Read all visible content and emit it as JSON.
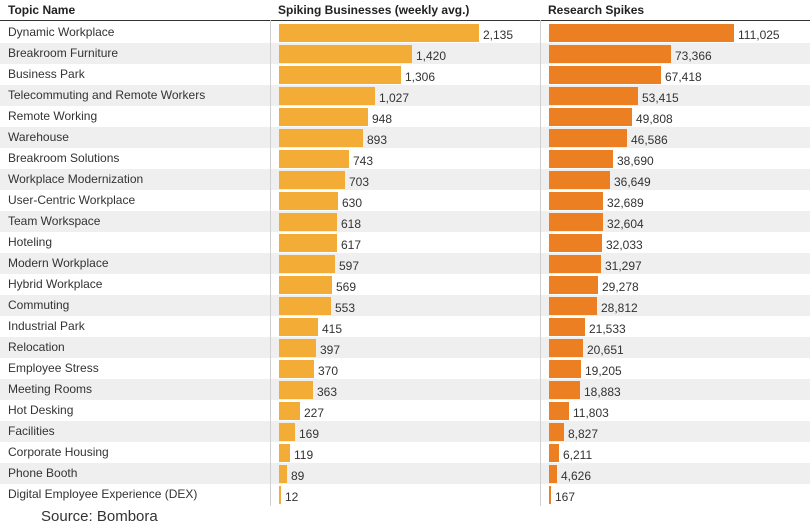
{
  "chart_data": {
    "type": "table",
    "columns": [
      "Topic Name",
      "Spiking Businesses (weekly avg.)",
      "Research Spikes"
    ],
    "rows": [
      {
        "topic": "Dynamic Workplace",
        "spiking": 2135,
        "spiking_label": "2,135",
        "research": 111025,
        "research_label": "111,025"
      },
      {
        "topic": "Breakroom Furniture",
        "spiking": 1420,
        "spiking_label": "1,420",
        "research": 73366,
        "research_label": "73,366"
      },
      {
        "topic": "Business Park",
        "spiking": 1306,
        "spiking_label": "1,306",
        "research": 67418,
        "research_label": "67,418"
      },
      {
        "topic": "Telecommuting and Remote Workers",
        "spiking": 1027,
        "spiking_label": "1,027",
        "research": 53415,
        "research_label": "53,415"
      },
      {
        "topic": "Remote Working",
        "spiking": 948,
        "spiking_label": "948",
        "research": 49808,
        "research_label": "49,808"
      },
      {
        "topic": "Warehouse",
        "spiking": 893,
        "spiking_label": "893",
        "research": 46586,
        "research_label": "46,586"
      },
      {
        "topic": "Breakroom Solutions",
        "spiking": 743,
        "spiking_label": "743",
        "research": 38690,
        "research_label": "38,690"
      },
      {
        "topic": "Workplace Modernization",
        "spiking": 703,
        "spiking_label": "703",
        "research": 36649,
        "research_label": "36,649"
      },
      {
        "topic": "User-Centric Workplace",
        "spiking": 630,
        "spiking_label": "630",
        "research": 32689,
        "research_label": "32,689"
      },
      {
        "topic": "Team Workspace",
        "spiking": 618,
        "spiking_label": "618",
        "research": 32604,
        "research_label": "32,604"
      },
      {
        "topic": "Hoteling",
        "spiking": 617,
        "spiking_label": "617",
        "research": 32033,
        "research_label": "32,033"
      },
      {
        "topic": "Modern Workplace",
        "spiking": 597,
        "spiking_label": "597",
        "research": 31297,
        "research_label": "31,297"
      },
      {
        "topic": "Hybrid Workplace",
        "spiking": 569,
        "spiking_label": "569",
        "research": 29278,
        "research_label": "29,278"
      },
      {
        "topic": "Commuting",
        "spiking": 553,
        "spiking_label": "553",
        "research": 28812,
        "research_label": "28,812"
      },
      {
        "topic": "Industrial Park",
        "spiking": 415,
        "spiking_label": "415",
        "research": 21533,
        "research_label": "21,533"
      },
      {
        "topic": "Relocation",
        "spiking": 397,
        "spiking_label": "397",
        "research": 20651,
        "research_label": "20,651"
      },
      {
        "topic": "Employee Stress",
        "spiking": 370,
        "spiking_label": "370",
        "research": 19205,
        "research_label": "19,205"
      },
      {
        "topic": "Meeting Rooms",
        "spiking": 363,
        "spiking_label": "363",
        "research": 18883,
        "research_label": "18,883"
      },
      {
        "topic": "Hot Desking",
        "spiking": 227,
        "spiking_label": "227",
        "research": 11803,
        "research_label": "11,803"
      },
      {
        "topic": "Facilities",
        "spiking": 169,
        "spiking_label": "169",
        "research": 8827,
        "research_label": "8,827"
      },
      {
        "topic": "Corporate Housing",
        "spiking": 119,
        "spiking_label": "119",
        "research": 6211,
        "research_label": "6,211"
      },
      {
        "topic": "Phone Booth",
        "spiking": 89,
        "spiking_label": "89",
        "research": 4626,
        "research_label": "4,626"
      },
      {
        "topic": "Digital Employee Experience (DEX)",
        "spiking": 12,
        "spiking_label": "12",
        "research": 167,
        "research_label": "167"
      }
    ],
    "spiking_max": 2135,
    "research_max": 111025,
    "source": "Source: Bombora"
  },
  "colors": {
    "spiking_bar": "#f3ad37",
    "research_bar": "#ec7f22",
    "row_stripe": "#efefef",
    "text": "#333333"
  }
}
